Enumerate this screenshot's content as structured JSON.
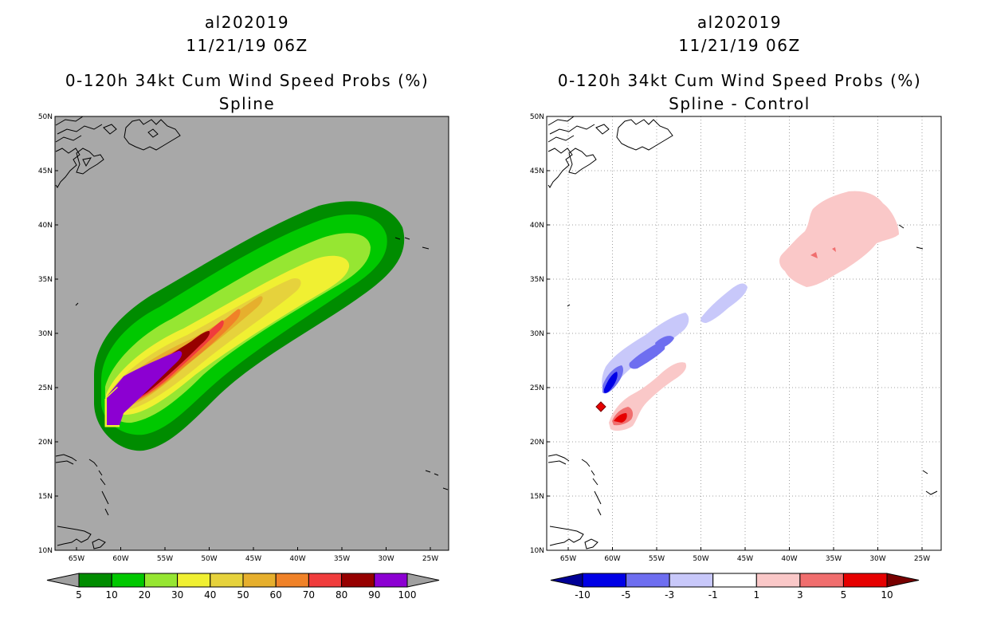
{
  "left_panel": {
    "storm_id": "al202019",
    "datetime": "11/21/19 06Z",
    "product": "0-120h 34kt Cum Wind Speed Probs (%)",
    "subtitle": "Spline",
    "colorbar": {
      "labels": [
        "5",
        "10",
        "20",
        "30",
        "40",
        "50",
        "60",
        "70",
        "80",
        "90",
        "100"
      ],
      "colors": [
        "#008c00",
        "#00c800",
        "#96e632",
        "#f0f032",
        "#e6d23c",
        "#e6af2d",
        "#f08228",
        "#f03c3c",
        "#960000",
        "#8c00d2"
      ],
      "under_color": "#a0a0a0",
      "over_color": "#a0a0a0"
    }
  },
  "right_panel": {
    "storm_id": "al202019",
    "datetime": "11/21/19 06Z",
    "product": "0-120h 34kt Cum Wind Speed Probs (%)",
    "subtitle": "Spline - Control",
    "colorbar": {
      "labels": [
        "-10",
        "-5",
        "-3",
        "-1",
        "1",
        "3",
        "5",
        "10"
      ],
      "colors": [
        "#0000e6",
        "#6e6ef0",
        "#c8c8fa",
        "#ffffff",
        "#fac8c8",
        "#f06e6e",
        "#e60000"
      ],
      "under_color": "#000096",
      "over_color": "#780000"
    }
  },
  "map": {
    "lat_labels": [
      "50N",
      "45N",
      "40N",
      "35N",
      "30N",
      "25N",
      "20N",
      "15N",
      "10N"
    ],
    "lon_labels": [
      "65W",
      "60W",
      "55W",
      "50W",
      "45W",
      "40W",
      "35W",
      "30W",
      "25W"
    ],
    "land_color": "#a8a8a8"
  }
}
